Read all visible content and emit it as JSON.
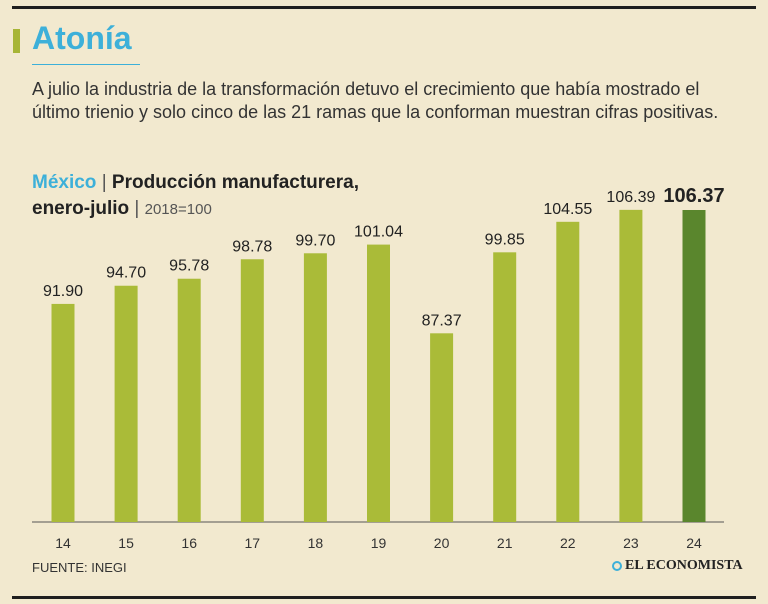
{
  "header": {
    "title": "Atonía",
    "subtitle": "A julio la industria de la transformación detuvo el crecimiento que había mostrado el último trienio y solo cinco de las 21 ramas que la conforman muestran cifras positivas."
  },
  "chart_heading": {
    "country": "México",
    "sep1": "|",
    "name": "Producción manufacturera,",
    "period": "enero-julio",
    "sep2": "|",
    "base": "2018=100"
  },
  "chart_data": {
    "type": "bar",
    "categories": [
      "14",
      "15",
      "16",
      "17",
      "18",
      "19",
      "20",
      "21",
      "22",
      "23",
      "24"
    ],
    "values": [
      91.9,
      94.7,
      95.78,
      98.78,
      99.7,
      101.04,
      87.37,
      99.85,
      104.55,
      106.39,
      106.37
    ],
    "value_labels": [
      "91.90",
      "94.70",
      "95.78",
      "98.78",
      "99.70",
      "101.04",
      "87.37",
      "99.85",
      "104.55",
      "106.39",
      "106.37"
    ],
    "highlight_index": 10,
    "colors": {
      "bar": "#aabb38",
      "highlight": "#5a862d"
    },
    "ylim": [
      70,
      108
    ]
  },
  "footer": {
    "source": "FUENTE: INEGI",
    "brand": "EL ECONOMISTA"
  },
  "colors": {
    "background": "#f2e9cf",
    "accent": "#3db0d9",
    "bar": "#aabb38",
    "highlight": "#5a862d"
  }
}
